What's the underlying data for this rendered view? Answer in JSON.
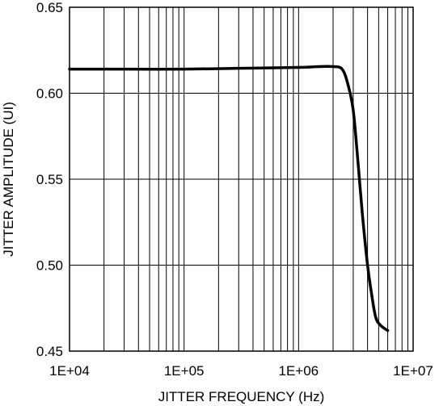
{
  "chart_data": {
    "type": "line",
    "xlabel": "JITTER FREQUENCY (Hz)",
    "ylabel": "JITTER AMPLITUDE (UI)",
    "x_scale": "log",
    "xlim": [
      10000,
      10000000
    ],
    "ylim": [
      0.45,
      0.65
    ],
    "x_ticks": [
      10000,
      100000,
      1000000,
      10000000
    ],
    "x_tick_labels": [
      "1E+04",
      "1E+05",
      "1E+06",
      "1E+07"
    ],
    "y_ticks": [
      0.45,
      0.5,
      0.55,
      0.6,
      0.65
    ],
    "y_tick_labels": [
      "0.45",
      "0.50",
      "0.55",
      "0.60",
      "0.65"
    ],
    "grid": true,
    "series": [
      {
        "x": [
          10000,
          30000,
          100000,
          300000,
          1000000,
          1500000,
          2000000,
          2400000,
          2700000,
          3000000,
          3300000,
          3600000,
          4000000,
          4300000,
          4700000,
          5200000,
          6000000
        ],
        "y": [
          0.614,
          0.614,
          0.614,
          0.6145,
          0.615,
          0.6155,
          0.6155,
          0.614,
          0.605,
          0.59,
          0.56,
          0.53,
          0.5,
          0.485,
          0.47,
          0.465,
          0.462
        ]
      }
    ]
  }
}
